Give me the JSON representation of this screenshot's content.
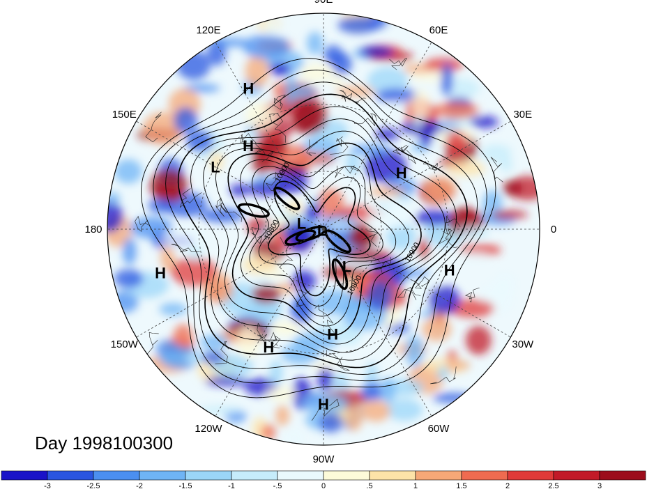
{
  "map": {
    "projection": "north-polar-stereographic",
    "date_label": "Day 1998100300",
    "lon_labels": [
      {
        "text": "90E",
        "lon": 90
      },
      {
        "text": "60E",
        "lon": 60
      },
      {
        "text": "30E",
        "lon": 30
      },
      {
        "text": "0",
        "lon": 0
      },
      {
        "text": "30W",
        "lon": -30
      },
      {
        "text": "60W",
        "lon": -60
      },
      {
        "text": "90W",
        "lon": -90
      },
      {
        "text": "120W",
        "lon": -120
      },
      {
        "text": "150W",
        "lon": -150
      },
      {
        "text": "180",
        "lon": 180
      },
      {
        "text": "150E",
        "lon": 150
      },
      {
        "text": "120E",
        "lon": 120
      }
    ],
    "pressure_systems": [
      {
        "text": "H",
        "lon": 118,
        "lat": 17
      },
      {
        "text": "L",
        "lon": 150,
        "lat": 30
      },
      {
        "text": "H",
        "lon": 132,
        "lat": 35
      },
      {
        "text": "H",
        "lon": 36,
        "lat": 42
      },
      {
        "text": "L",
        "lon": 165,
        "lat": 78
      },
      {
        "text": "L",
        "lon": -150,
        "lat": 89
      },
      {
        "text": "H",
        "lon": -165,
        "lat": 14
      },
      {
        "text": "H",
        "lon": -18,
        "lat": 27
      },
      {
        "text": "L",
        "lon": -58,
        "lat": 67
      },
      {
        "text": "H",
        "lon": -115,
        "lat": 28
      },
      {
        "text": "H",
        "lon": -85,
        "lat": 38
      },
      {
        "text": "H",
        "lon": -90,
        "lat": 12
      }
    ],
    "contour_labels": [
      {
        "text": "10900",
        "lon": 125,
        "lat": 55
      },
      {
        "text": "10800",
        "lon": -178,
        "lat": 64
      },
      {
        "text": "10900",
        "lon": -15,
        "lat": 43
      },
      {
        "text": "10800",
        "lon": -60,
        "lat": 56
      }
    ]
  },
  "colorbar": {
    "ticks": [
      "-3",
      "-2.5",
      "-2",
      "-1.5",
      "-1",
      "-.5",
      "0",
      ".5",
      "1",
      "1.5",
      "2",
      "2.5",
      "3"
    ],
    "colors": [
      "#1a13c8",
      "#2a55e0",
      "#4b8ff0",
      "#6fb4f5",
      "#9bd6f8",
      "#c6ecfb",
      "#eaf9fd",
      "#fdfbd9",
      "#fde3a8",
      "#f6a877",
      "#ef6b50",
      "#e03a39",
      "#c21a28",
      "#9c0d1c"
    ]
  }
}
